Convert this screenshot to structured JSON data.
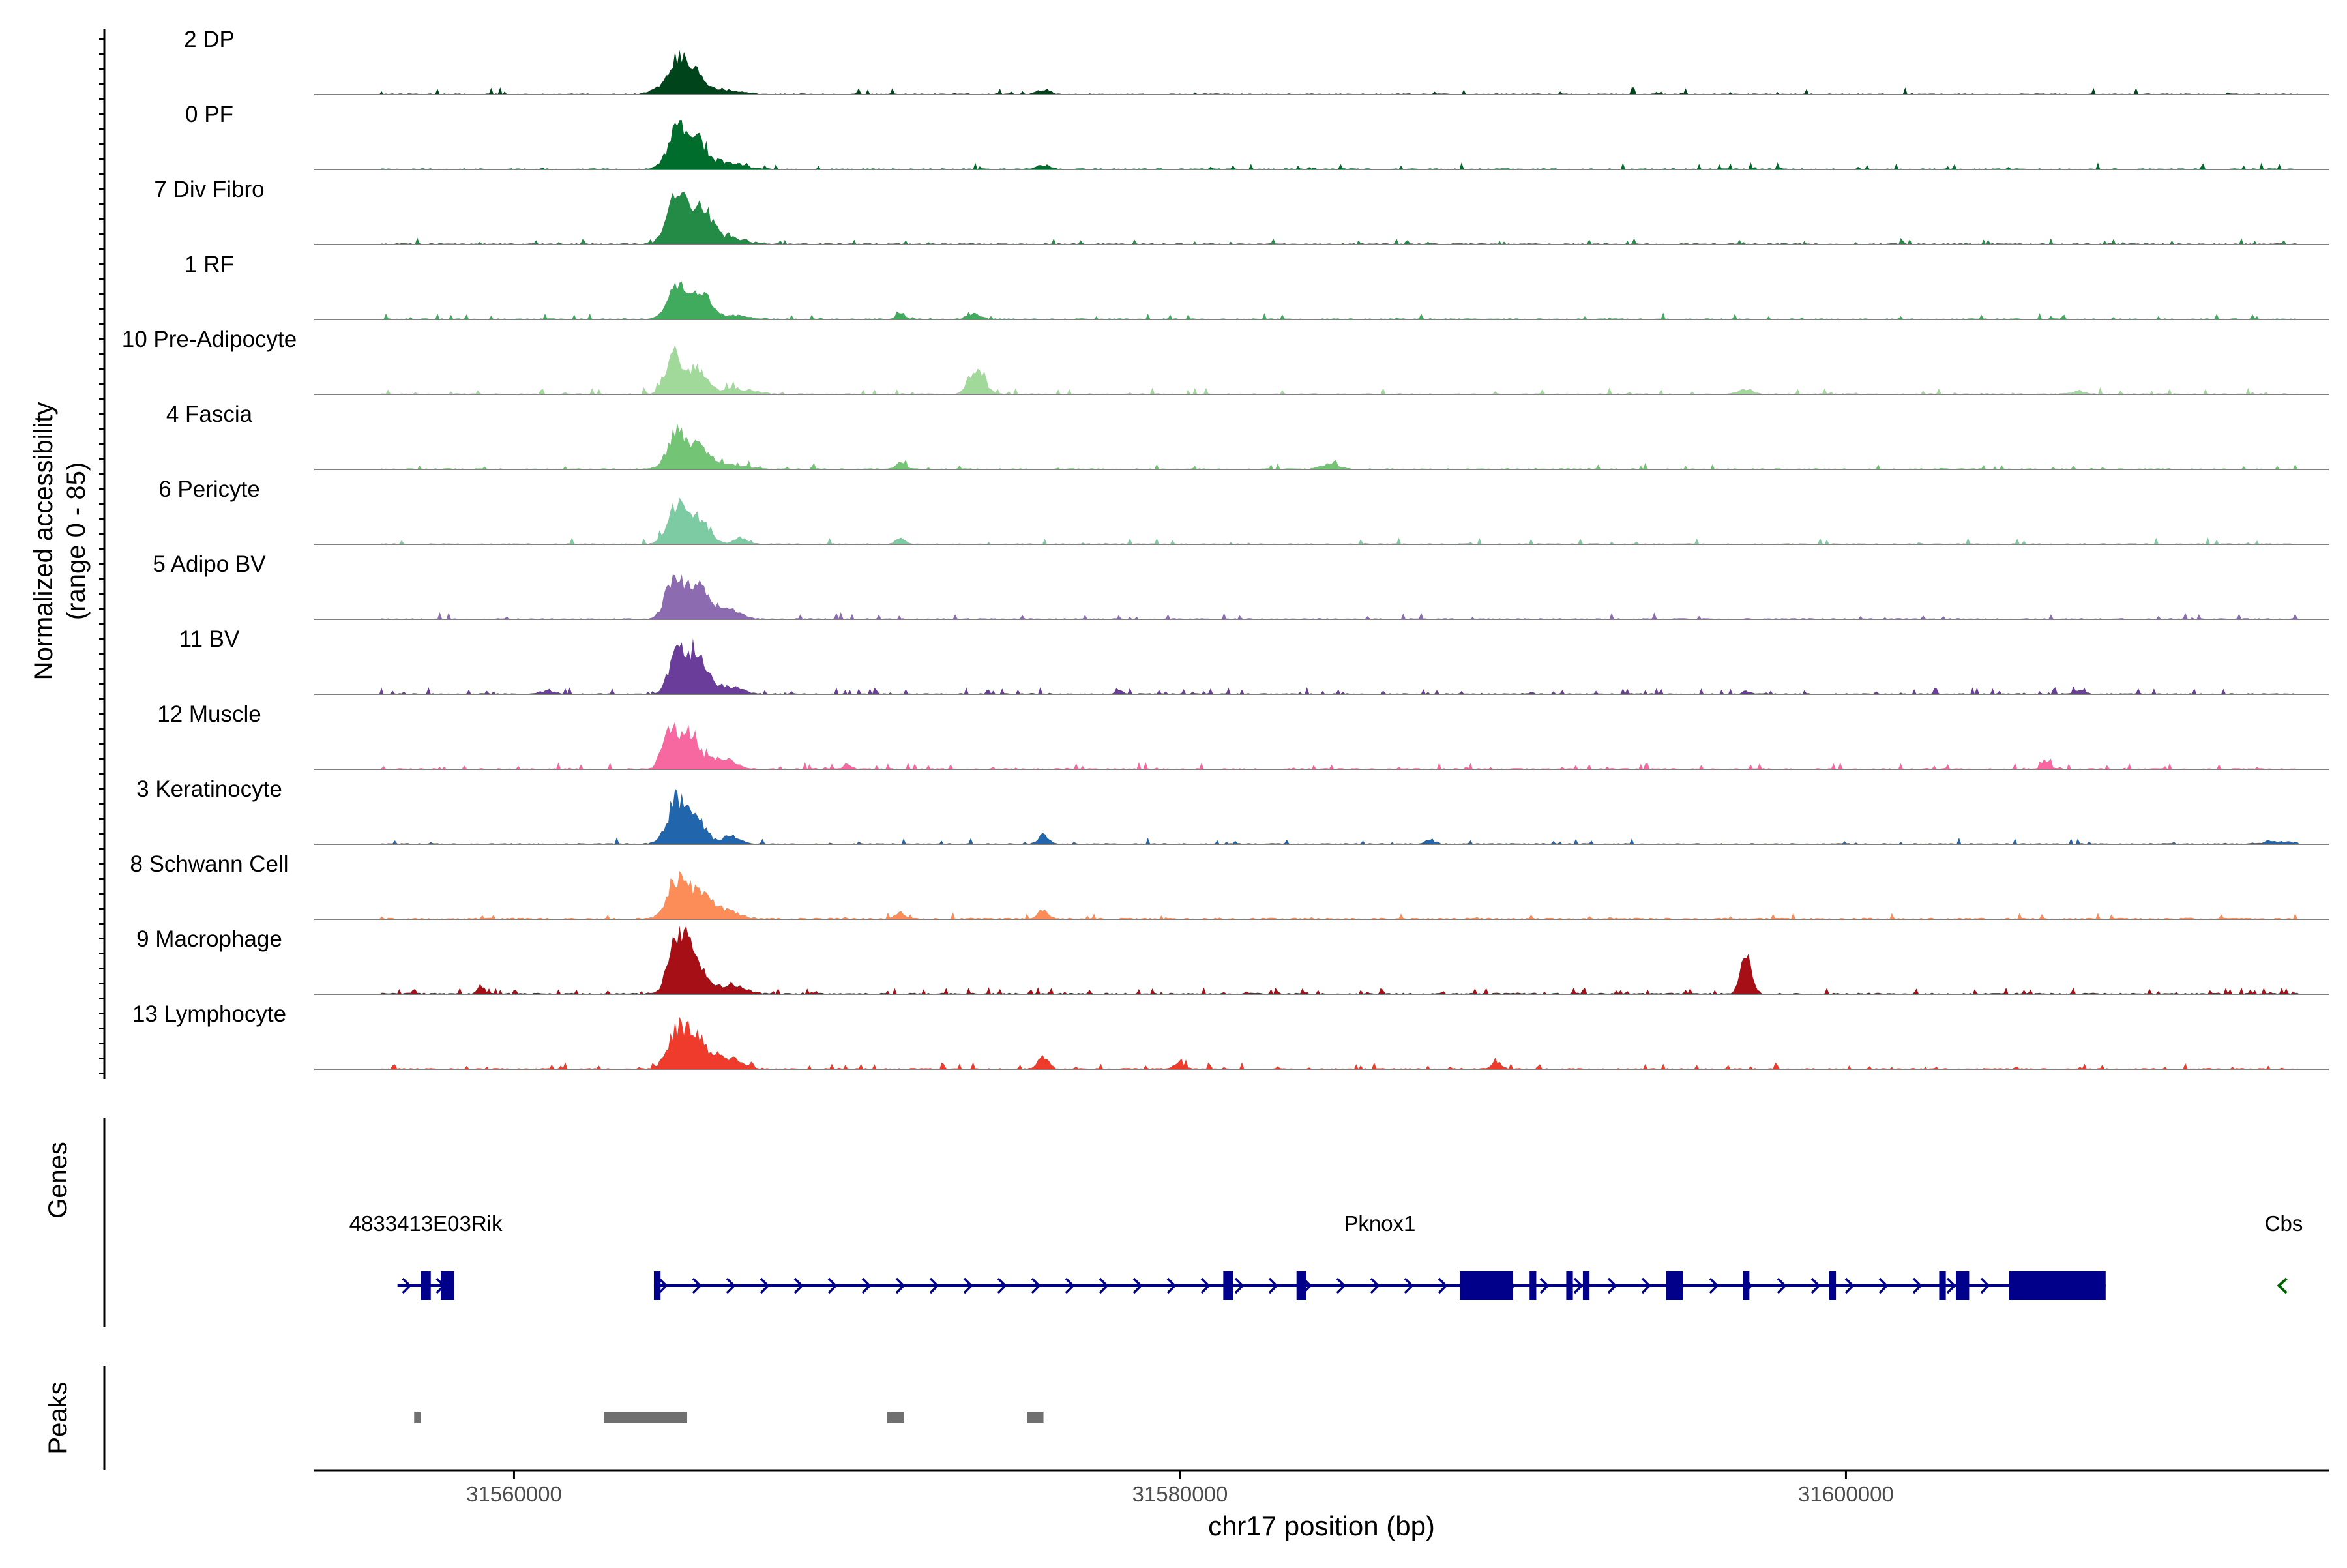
{
  "chart_data": {
    "type": "area",
    "title": "",
    "ylabel_line1": "Normalized accessibility",
    "ylabel_line2": "(range 0 - 85)",
    "xlabel": "chr17 position (bp)",
    "y_range": [
      0,
      85
    ],
    "x_range": [
      31554000,
      31614500
    ],
    "x_ticks": [
      {
        "value": 31560000,
        "label": "31560000"
      },
      {
        "value": 31580000,
        "label": "31580000"
      },
      {
        "value": 31600000,
        "label": "31600000"
      }
    ],
    "tracks": [
      {
        "name": "2 DP",
        "color": "#00441b",
        "bg": 1.5,
        "noise": 0.05,
        "peaks": [
          [
            31564900,
            52,
            280
          ],
          [
            31565400,
            34,
            260
          ],
          [
            31566200,
            8,
            500
          ],
          [
            31564300,
            6,
            250
          ],
          [
            31575900,
            7,
            200
          ]
        ]
      },
      {
        "name": "0 PF",
        "color": "#006d2c",
        "bg": 1.5,
        "noise": 0.05,
        "peaks": [
          [
            31564900,
            62,
            280
          ],
          [
            31565500,
            42,
            250
          ],
          [
            31566300,
            12,
            500
          ],
          [
            31575900,
            7,
            200
          ]
        ]
      },
      {
        "name": "7 Div Fibro",
        "color": "#238b45",
        "bg": 2,
        "noise": 0.08,
        "peaks": [
          [
            31564900,
            80,
            300
          ],
          [
            31565600,
            56,
            320
          ],
          [
            31566400,
            10,
            500
          ]
        ]
      },
      {
        "name": "1 RF",
        "color": "#41ab5d",
        "bg": 1.5,
        "noise": 0.06,
        "peaks": [
          [
            31564900,
            48,
            280
          ],
          [
            31565600,
            40,
            280
          ],
          [
            31566500,
            6,
            500
          ],
          [
            31571600,
            10,
            120
          ],
          [
            31573800,
            8,
            200
          ]
        ]
      },
      {
        "name": "10 Pre-Adipocyte",
        "color": "#a1d99b",
        "bg": 1.5,
        "noise": 0.08,
        "peaks": [
          [
            31564800,
            64,
            250
          ],
          [
            31565500,
            40,
            260
          ],
          [
            31566600,
            8,
            600
          ],
          [
            31573900,
            46,
            220
          ],
          [
            31597000,
            8,
            200
          ],
          [
            31607000,
            5,
            200
          ]
        ]
      },
      {
        "name": "4 Fascia",
        "color": "#74c476",
        "bg": 1.5,
        "noise": 0.06,
        "peaks": [
          [
            31564900,
            56,
            280
          ],
          [
            31565600,
            34,
            300
          ],
          [
            31566500,
            6,
            500
          ],
          [
            31571600,
            10,
            150
          ],
          [
            31584500,
            9,
            250
          ]
        ]
      },
      {
        "name": "6 Pericyte",
        "color": "#7ccba2",
        "bg": 1.5,
        "noise": 0.06,
        "peaks": [
          [
            31564900,
            62,
            280
          ],
          [
            31565600,
            42,
            280
          ],
          [
            31566800,
            10,
            200
          ],
          [
            31571600,
            10,
            150
          ]
        ]
      },
      {
        "name": "5 Adipo BV",
        "color": "#8c6bb1",
        "bg": 1.5,
        "noise": 0.05,
        "peaks": [
          [
            31564800,
            70,
            250
          ],
          [
            31565500,
            54,
            280
          ],
          [
            31566300,
            18,
            400
          ]
        ]
      },
      {
        "name": "11 BV",
        "color": "#6a3d9a",
        "bg": 1.5,
        "noise": 0.12,
        "peaks": [
          [
            31564900,
            58,
            260
          ],
          [
            31565500,
            70,
            280
          ],
          [
            31566400,
            12,
            400
          ],
          [
            31561000,
            6,
            200
          ],
          [
            31578200,
            5,
            100
          ],
          [
            31597000,
            5,
            100
          ],
          [
            31607000,
            5,
            200
          ]
        ]
      },
      {
        "name": "12 Muscle",
        "color": "#f768a1",
        "bg": 1.5,
        "noise": 0.1,
        "peaks": [
          [
            31564700,
            74,
            220
          ],
          [
            31565300,
            58,
            250
          ],
          [
            31566200,
            18,
            400
          ],
          [
            31570000,
            8,
            100
          ],
          [
            31606000,
            14,
            120
          ]
        ]
      },
      {
        "name": "3 Keratinocyte",
        "color": "#2166ac",
        "bg": 1.5,
        "noise": 0.05,
        "peaks": [
          [
            31564900,
            70,
            280
          ],
          [
            31565500,
            38,
            250
          ],
          [
            31566500,
            12,
            300
          ],
          [
            31575900,
            16,
            150
          ],
          [
            31587500,
            8,
            150
          ],
          [
            31613000,
            4,
            500
          ]
        ]
      },
      {
        "name": "8 Schwann Cell",
        "color": "#fc8d59",
        "bg": 2,
        "noise": 0.06,
        "peaks": [
          [
            31564900,
            62,
            300
          ],
          [
            31565600,
            40,
            300
          ],
          [
            31566300,
            14,
            400
          ],
          [
            31571600,
            10,
            150
          ],
          [
            31575900,
            16,
            150
          ]
        ]
      },
      {
        "name": "9 Macrophage",
        "color": "#a50f15",
        "bg": 2,
        "noise": 0.15,
        "peaks": [
          [
            31564900,
            85,
            260
          ],
          [
            31565400,
            64,
            260
          ],
          [
            31566400,
            14,
            500
          ],
          [
            31559000,
            14,
            100
          ],
          [
            31597000,
            58,
            160
          ]
        ]
      },
      {
        "name": "13 Lymphocyte",
        "color": "#ef3b2c",
        "bg": 1.5,
        "noise": 0.12,
        "peaks": [
          [
            31564900,
            62,
            280
          ],
          [
            31565500,
            50,
            300
          ],
          [
            31566400,
            18,
            400
          ],
          [
            31575900,
            22,
            150
          ],
          [
            31580000,
            10,
            150
          ],
          [
            31589500,
            10,
            150
          ]
        ]
      }
    ],
    "genes_label": "Genes",
    "genes": [
      {
        "name": "4833413E03Rik",
        "start": 31556500,
        "end": 31558200,
        "strand": "+",
        "color": "#00008b",
        "exons": [
          [
            31557200,
            31557500
          ],
          [
            31557800,
            31558200
          ]
        ]
      },
      {
        "name": "Pknox1",
        "start": 31564200,
        "end": 31607800,
        "strand": "+",
        "color": "#00008b",
        "exons": [
          [
            31564200,
            31564400
          ],
          [
            31581300,
            31581600
          ],
          [
            31583500,
            31583800
          ],
          [
            31588400,
            31590000
          ],
          [
            31590500,
            31590700
          ],
          [
            31591600,
            31591800
          ],
          [
            31592100,
            31592300
          ],
          [
            31594600,
            31595100
          ],
          [
            31596900,
            31597100
          ],
          [
            31599500,
            31599700
          ],
          [
            31602800,
            31603000
          ],
          [
            31603300,
            31603700
          ],
          [
            31604900,
            31607800
          ]
        ]
      },
      {
        "name": "Cbs",
        "start": 31613000,
        "end": 31613300,
        "strand": "-",
        "color": "#006400",
        "exons": []
      }
    ],
    "peaks_label": "Peaks",
    "peak_regions": [
      [
        31557000,
        31557200
      ],
      [
        31562700,
        31565200
      ],
      [
        31571200,
        31571700
      ],
      [
        31575400,
        31575900
      ]
    ]
  }
}
